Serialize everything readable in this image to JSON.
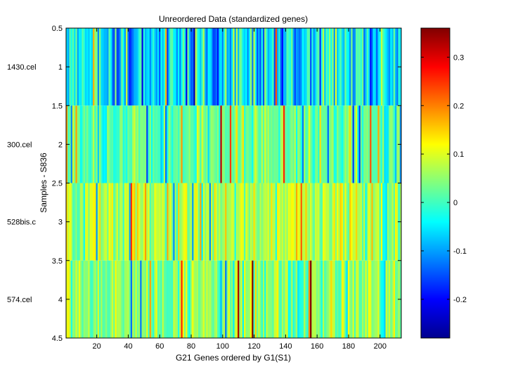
{
  "chart_data": {
    "type": "heatmap",
    "title": "Unreordered Data (standardized genes)",
    "xlabel": "G21 Genes ordered by G1(S1)",
    "ylabel": "Samples - S836",
    "xlim": [
      0.5,
      213.5
    ],
    "ylim": [
      0.5,
      4.5
    ],
    "x_ticks": [
      20,
      40,
      60,
      80,
      100,
      120,
      140,
      160,
      180,
      200
    ],
    "y_ticks": [
      0.5,
      1,
      1.5,
      2,
      2.5,
      3,
      3.5,
      4,
      4.5
    ],
    "row_labels": [
      "1430.cel",
      "300.cel",
      "528bis.c",
      "574.cel"
    ],
    "n_genes": 213,
    "colorbar": {
      "range": [
        -0.28,
        0.36
      ],
      "ticks": [
        -0.2,
        -0.1,
        0,
        0.1,
        0.2,
        0.3
      ],
      "colormap": "jet"
    },
    "row_means": [
      -0.06,
      0.02,
      0.07,
      0.05
    ],
    "row_spreads": [
      0.09,
      0.05,
      0.06,
      0.07
    ]
  }
}
